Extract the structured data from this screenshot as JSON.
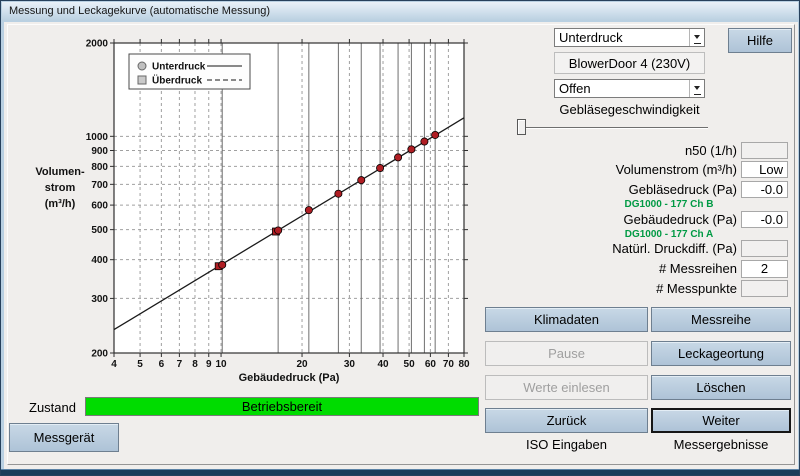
{
  "window": {
    "title": "Messung und Leckagekurve (automatische Messung)"
  },
  "colors": {
    "status_green": "#00dc00",
    "channel_green": "#009a44",
    "marker_red": "#b01e24",
    "button_blue": "#b7cbdd"
  },
  "chart_data": {
    "type": "scatter",
    "xlabel": "Gebäudedruck (Pa)",
    "ylabel": "Volumenstrom (m³/h)",
    "ylabel_lines": [
      "Volumen-",
      "strom",
      "(m³/h)"
    ],
    "x_scale": "log",
    "y_scale": "log",
    "xlim": [
      4,
      80
    ],
    "ylim": [
      200,
      2000
    ],
    "x_ticks": [
      4,
      5,
      6,
      7,
      8,
      9,
      10,
      20,
      30,
      40,
      50,
      60,
      70,
      80
    ],
    "y_ticks": [
      200,
      300,
      400,
      500,
      600,
      700,
      800,
      900,
      1000,
      2000
    ],
    "grid": "log dashed minor grid, solid vertical lines at measured pressure stations",
    "legend_position": "top-left inside plot",
    "legend": [
      {
        "label": "Unterdruck",
        "marker": "circle",
        "line": "solid"
      },
      {
        "label": "Überdruck",
        "marker": "square",
        "line": "dashed"
      }
    ],
    "series": [
      {
        "name": "Unterdruck",
        "marker": "circle",
        "color": "#b01e24",
        "points": [
          [
            10.1,
            385
          ],
          [
            16.3,
            497
          ],
          [
            21.2,
            578
          ],
          [
            27.3,
            653
          ],
          [
            33.2,
            722
          ],
          [
            39,
            790
          ],
          [
            45.5,
            855
          ],
          [
            51,
            908
          ],
          [
            57,
            962
          ],
          [
            62.5,
            1010
          ]
        ]
      },
      {
        "name": "Überdruck",
        "marker": "square",
        "color": "#b01e24",
        "points": [
          [
            9.8,
            381
          ],
          [
            16.0,
            493
          ]
        ]
      }
    ],
    "fit_line": {
      "from": [
        4,
        238
      ],
      "to": [
        80,
        1147
      ]
    },
    "station_lines_x": [
      10.1,
      16.3,
      21.2,
      27.3,
      33.2,
      39,
      45.5,
      51,
      57,
      62.5
    ]
  },
  "right_panel": {
    "mode_select": {
      "value": "Unterdruck"
    },
    "device_label": "BlowerDoor 4 (230V)",
    "ring_select": {
      "value": "Offen"
    },
    "fan_speed_label": "Gebläsegeschwindigkeit",
    "help_button": "Hilfe",
    "fields": {
      "n50": {
        "label": "n50 (1/h)",
        "value": ""
      },
      "volumenstrom": {
        "label": "Volumenstrom (m³/h)",
        "value": "Low"
      },
      "geblaesedruck": {
        "label": "Gebläsedruck (Pa)",
        "value": "-0.0",
        "channel": "DG1000 - 177 Ch B"
      },
      "gebaeudedruck": {
        "label": "Gebäudedruck (Pa)",
        "value": "-0.0",
        "channel": "DG1000 - 177 Ch A"
      },
      "natuerlich": {
        "label": "Natürl. Druckdiff. (Pa)",
        "value": ""
      },
      "messreihen": {
        "label": "# Messreihen",
        "value": "2"
      },
      "messpunkte": {
        "label": "# Messpunkte",
        "value": ""
      }
    },
    "buttons": {
      "klimadaten": {
        "label": "Klimadaten",
        "enabled": true
      },
      "messreihe": {
        "label": "Messreihe",
        "enabled": true
      },
      "pause": {
        "label": "Pause",
        "enabled": false
      },
      "leckageortung": {
        "label": "Leckageortung",
        "enabled": true
      },
      "werte_einlesen": {
        "label": "Werte einlesen",
        "enabled": false
      },
      "loeschen": {
        "label": "Löschen",
        "enabled": true
      },
      "zurueck": {
        "label": "Zurück",
        "enabled": true
      },
      "weiter": {
        "label": "Weiter",
        "enabled": true,
        "default": true
      }
    },
    "footer": {
      "left": "ISO Eingaben",
      "right": "Messergebnisse"
    }
  },
  "status": {
    "label": "Zustand",
    "value": "Betriebsbereit"
  },
  "bottom": {
    "messgeraet_button": "Messgerät"
  }
}
